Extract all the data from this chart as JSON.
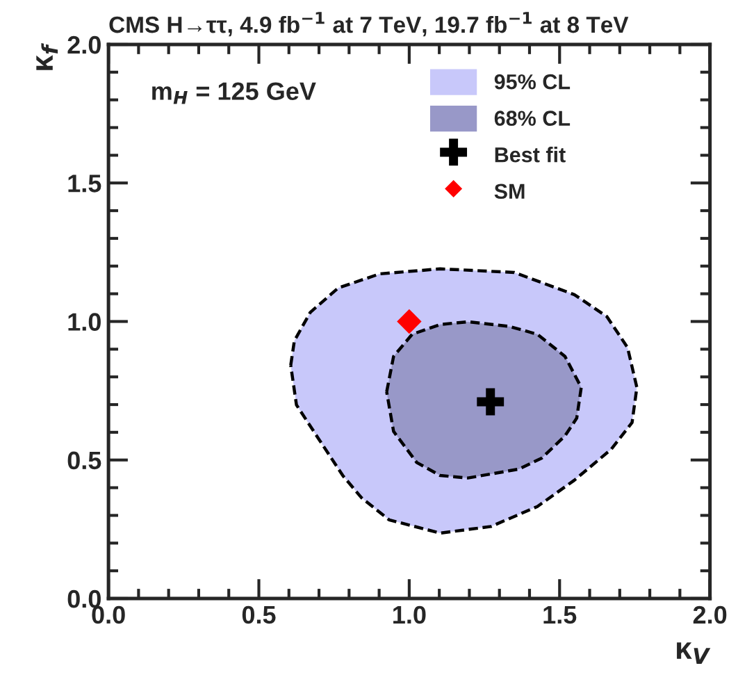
{
  "chart_data": {
    "type": "area",
    "title": "CMS H→ττ, 4.9 fb$^{−1}$ at 7 TeV, 19.7 fb$^{−1}$ at 8 TeV",
    "xlabel": "κ$_{V}$",
    "ylabel": "κ$_{f}$",
    "annotations": [
      "m$_{H}$ = 125 GeV"
    ],
    "xlim": [
      0,
      2
    ],
    "ylim": [
      0,
      2
    ],
    "xticks": [
      {
        "value": 0,
        "label": "0.0"
      },
      {
        "value": 0.5,
        "label": "0.5"
      },
      {
        "value": 1,
        "label": "1.0"
      },
      {
        "value": 1.5,
        "label": "1.5"
      },
      {
        "value": 2,
        "label": "2.0"
      }
    ],
    "yticks": [
      {
        "value": 0,
        "label": "0.0"
      },
      {
        "value": 0.5,
        "label": "0.5"
      },
      {
        "value": 1,
        "label": "1.0"
      },
      {
        "value": 1.5,
        "label": "1.5"
      },
      {
        "value": 2,
        "label": "2.0"
      }
    ],
    "legend": "top right",
    "grid": false,
    "series": [
      {
        "name": "95% CL",
        "color": "#c8c8fa",
        "line_style": "dashed",
        "x": [
          0.606,
          0.618,
          0.671,
          0.764,
          0.902,
          1.103,
          1.349,
          1.549,
          1.657,
          1.726,
          1.757,
          1.741,
          1.672,
          1.549,
          1.426,
          1.272,
          1.103,
          0.933,
          0.841,
          0.779,
          0.702,
          0.625,
          0.606
        ],
        "values": [
          0.842,
          0.93,
          1.033,
          1.121,
          1.172,
          1.19,
          1.177,
          1.097,
          1.018,
          0.906,
          0.762,
          0.635,
          0.539,
          0.427,
          0.332,
          0.26,
          0.236,
          0.284,
          0.364,
          0.444,
          0.571,
          0.699,
          0.842
        ]
      },
      {
        "name": "68% CL",
        "color": "#9898c8",
        "line_style": "dashed",
        "x": [
          0.925,
          0.948,
          1.01,
          1.103,
          1.195,
          1.333,
          1.426,
          1.518,
          1.572,
          1.557,
          1.518,
          1.441,
          1.364,
          1.195,
          1.103,
          1.025,
          0.948,
          0.925
        ],
        "values": [
          0.746,
          0.874,
          0.954,
          0.989,
          0.999,
          0.982,
          0.954,
          0.874,
          0.762,
          0.651,
          0.587,
          0.507,
          0.467,
          0.435,
          0.444,
          0.491,
          0.603,
          0.746
        ]
      },
      {
        "name": "Best fit",
        "type": "scatter",
        "color": "#000000",
        "marker": "cross",
        "x": [
          1.27
        ],
        "values": [
          0.71
        ]
      },
      {
        "name": "SM",
        "type": "scatter",
        "color": "#ff0000",
        "marker": "diamond",
        "x": [
          1.0
        ],
        "values": [
          1.0
        ]
      }
    ]
  }
}
